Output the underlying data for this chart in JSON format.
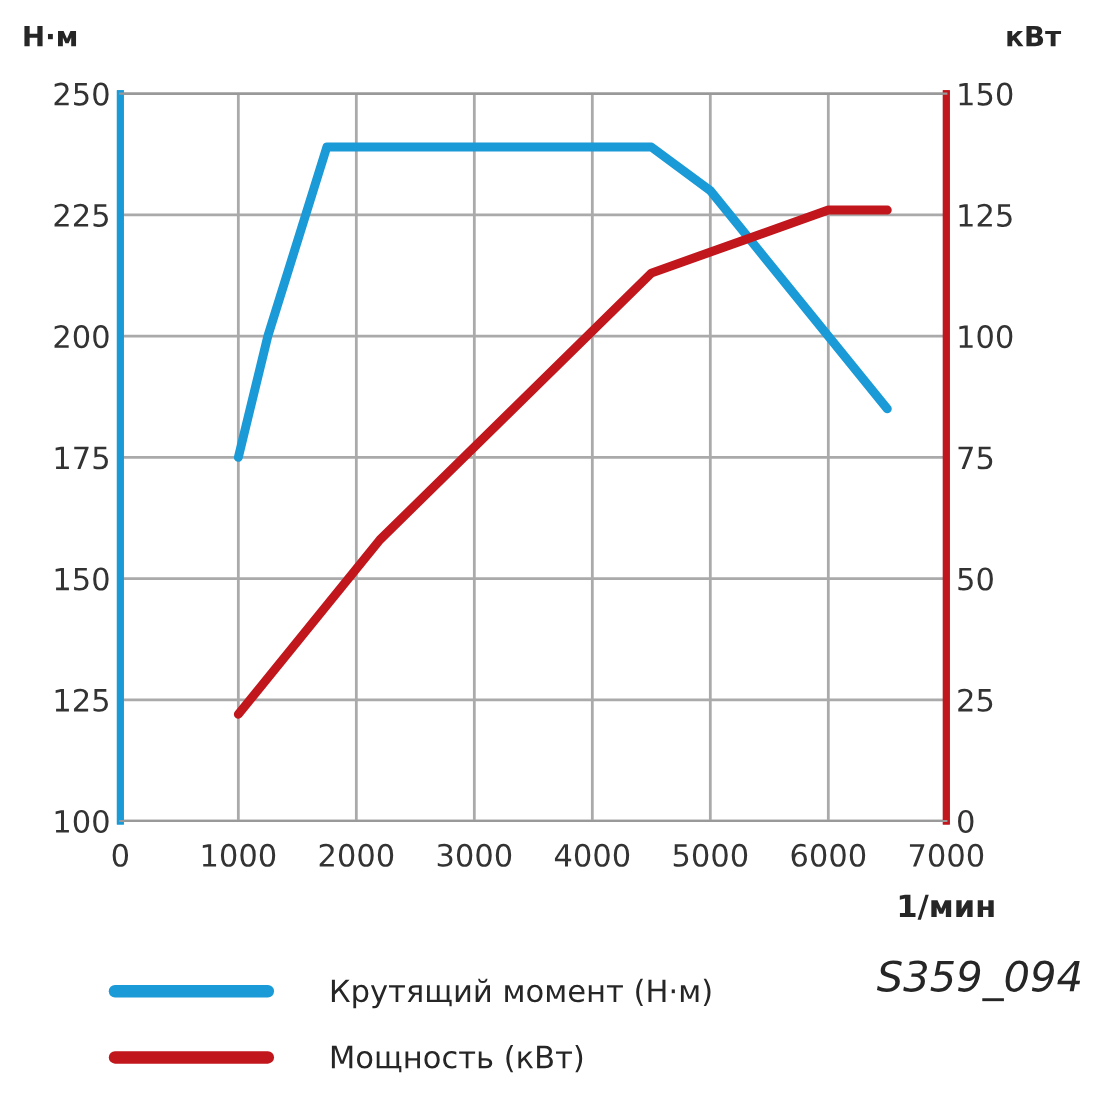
{
  "chart_data": {
    "type": "line",
    "xlabel": "1/мин",
    "ylabel": "Н·м",
    "y2label": "кВт",
    "series": [
      {
        "name": "Крутящий момент (Н·м)",
        "color": "#1a9ad6",
        "x": [
          1000,
          1250,
          1750,
          4500,
          5000,
          6000,
          6500
        ],
        "values": [
          175,
          200,
          239,
          239,
          230,
          200,
          185
        ]
      },
      {
        "name": "Мощность (кВт)",
        "color": "#c0161c",
        "axis": "y2",
        "x": [
          1000,
          2200,
          4500,
          6000,
          6500
        ],
        "values": [
          22,
          58,
          113,
          126,
          126
        ]
      }
    ],
    "xlim": [
      0,
      7000
    ],
    "xticks": [
      0,
      1000,
      2000,
      3000,
      4000,
      5000,
      6000,
      7000
    ],
    "ylim": [
      100,
      250
    ],
    "yticks": [
      100,
      125,
      150,
      175,
      200,
      225,
      250
    ],
    "y2lim": [
      0,
      150
    ],
    "y2ticks": [
      0,
      25,
      50,
      75,
      100,
      125,
      150
    ],
    "grid": true,
    "legend": "bottom",
    "marker": "none",
    "line_style": "solid",
    "annotations": [
      "S359_094"
    ]
  }
}
